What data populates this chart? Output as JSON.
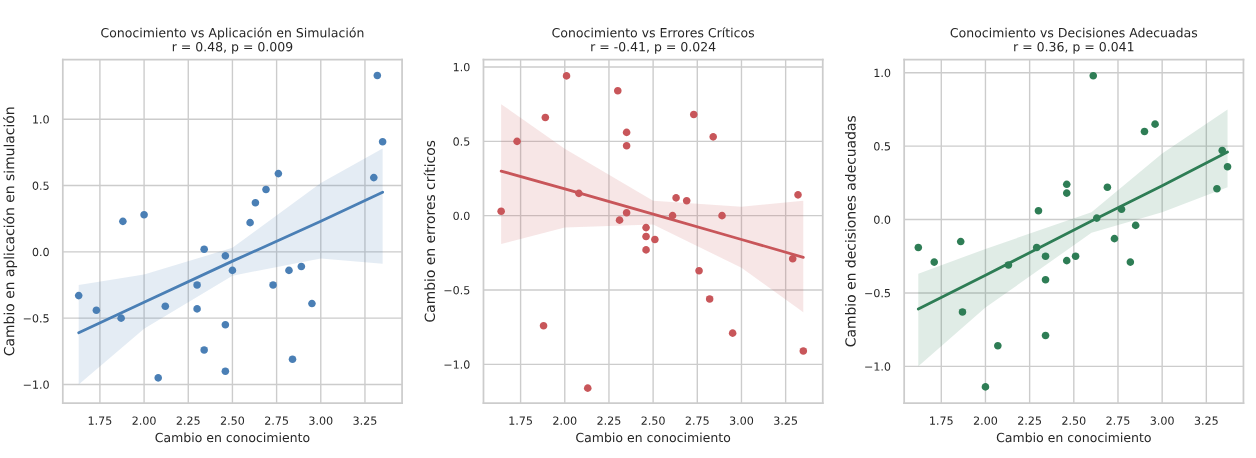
{
  "chart_data": [
    {
      "type": "scatter",
      "title": "Conocimiento vs Aplicación en Simulación",
      "subtitle": "r = 0.48, p = 0.009",
      "xlabel": "Cambio en conocimiento",
      "ylabel": "Cambio en aplicación en simulación",
      "grid": true,
      "marker": "circle",
      "xlim": [
        1.54,
        3.46
      ],
      "ylim": [
        -1.14,
        1.45
      ],
      "xticks": [
        1.75,
        {
          "value": 2.0,
          "label": "2.00"
        },
        2.25,
        {
          "value": 2.5,
          "label": "2.50"
        },
        2.75,
        {
          "value": 3.0,
          "label": "3.00"
        },
        3.25
      ],
      "yticks": [
        {
          "value": -1.0,
          "label": "−1.0"
        },
        {
          "value": -0.5,
          "label": "−0.5"
        },
        {
          "value": 0.0,
          "label": "0.0"
        },
        {
          "value": 0.5,
          "label": "0.5"
        },
        {
          "value": 1.0,
          "label": "1.0"
        }
      ],
      "series": [
        {
          "color": "#4a7fb5",
          "x": [
            1.63,
            1.73,
            1.88,
            1.87,
            2.0,
            2.08,
            2.12,
            2.3,
            2.3,
            2.34,
            2.34,
            2.46,
            2.46,
            2.46,
            2.5,
            2.6,
            2.63,
            2.69,
            2.73,
            2.76,
            2.82,
            2.84,
            2.89,
            2.95,
            3.3,
            3.32,
            3.35
          ],
          "values": [
            -0.33,
            -0.44,
            0.23,
            -0.5,
            0.28,
            -0.95,
            -0.41,
            -0.25,
            -0.43,
            0.02,
            -0.74,
            -0.03,
            -0.55,
            -0.9,
            -0.14,
            0.22,
            0.37,
            0.47,
            -0.25,
            0.59,
            -0.14,
            -0.81,
            -0.11,
            -0.39,
            0.56,
            1.33,
            0.83
          ]
        },
        {
          "type": "line",
          "color": "#4a7fb5",
          "marker": "none",
          "x": [
            1.63,
            2.0,
            2.5,
            3.0,
            3.35
          ],
          "values": [
            -0.61,
            -0.38,
            -0.07,
            0.23,
            0.45
          ],
          "lower": [
            -1.0,
            -0.58,
            -0.18,
            -0.05,
            -0.09
          ],
          "upper": [
            -0.25,
            -0.17,
            0.03,
            0.52,
            0.78
          ]
        }
      ]
    },
    {
      "type": "scatter",
      "title": "Conocimiento vs Errores Críticos",
      "subtitle": "r = -0.41, p = 0.024",
      "xlabel": "Cambio en conocimiento",
      "ylabel": "Cambio en errores críticos",
      "grid": true,
      "marker": "circle",
      "xlim": [
        1.54,
        3.46
      ],
      "ylim": [
        -1.26,
        1.05
      ],
      "xticks": [
        1.75,
        {
          "value": 2.0,
          "label": "2.00"
        },
        2.25,
        {
          "value": 2.5,
          "label": "2.50"
        },
        2.75,
        {
          "value": 3.0,
          "label": "3.00"
        },
        3.25
      ],
      "yticks": [
        {
          "value": -1.0,
          "label": "−1.0"
        },
        {
          "value": -0.5,
          "label": "−0.5"
        },
        {
          "value": 0.0,
          "label": "0.0"
        },
        {
          "value": 0.5,
          "label": "0.5"
        },
        {
          "value": 1.0,
          "label": "1.0"
        }
      ],
      "series": [
        {
          "color": "#c8565a",
          "x": [
            1.64,
            1.73,
            1.89,
            1.88,
            2.01,
            2.08,
            2.13,
            2.3,
            2.31,
            2.35,
            2.35,
            2.35,
            2.46,
            2.46,
            2.46,
            2.51,
            2.61,
            2.63,
            2.69,
            2.73,
            2.76,
            2.82,
            2.84,
            2.89,
            2.95,
            3.29,
            3.32,
            3.35
          ],
          "values": [
            0.03,
            0.5,
            0.66,
            -0.74,
            0.94,
            0.15,
            -1.16,
            0.84,
            -0.03,
            0.56,
            0.47,
            0.02,
            -0.08,
            -0.14,
            -0.23,
            -0.16,
            0.0,
            0.12,
            0.1,
            0.68,
            -0.37,
            -0.56,
            0.53,
            0.0,
            -0.79,
            -0.29,
            0.14,
            -0.91
          ]
        },
        {
          "type": "line",
          "color": "#c8565a",
          "marker": "none",
          "x": [
            1.64,
            2.0,
            2.5,
            3.0,
            3.35
          ],
          "values": [
            0.3,
            0.18,
            0.01,
            -0.16,
            -0.28
          ],
          "lower": [
            -0.19,
            -0.08,
            -0.06,
            -0.35,
            -0.65
          ],
          "upper": [
            0.75,
            0.45,
            0.1,
            0.06,
            0.1
          ]
        }
      ]
    },
    {
      "type": "scatter",
      "title": "Conocimiento vs Decisiones Adecuadas",
      "subtitle": "r = 0.36, p = 0.041",
      "xlabel": "Cambio en conocimiento",
      "ylabel": "Cambio en decisiones adecuadas",
      "grid": true,
      "marker": "circle",
      "xlim": [
        1.54,
        3.46
      ],
      "ylim": [
        -1.25,
        1.09
      ],
      "xticks": [
        1.75,
        {
          "value": 2.0,
          "label": "2.00"
        },
        2.25,
        {
          "value": 2.5,
          "label": "2.50"
        },
        2.75,
        {
          "value": 3.0,
          "label": "3.00"
        },
        3.25
      ],
      "yticks": [
        {
          "value": -1.0,
          "label": "−1.0"
        },
        {
          "value": -0.5,
          "label": "−0.5"
        },
        {
          "value": 0.0,
          "label": "0.0"
        },
        {
          "value": 0.5,
          "label": "0.5"
        },
        {
          "value": 1.0,
          "label": "1.0"
        }
      ],
      "series": [
        {
          "color": "#2e7d55",
          "x": [
            1.62,
            1.71,
            1.86,
            1.87,
            2.0,
            2.07,
            2.13,
            2.29,
            2.3,
            2.34,
            2.34,
            2.34,
            2.46,
            2.46,
            2.46,
            2.51,
            2.61,
            2.63,
            2.69,
            2.73,
            2.77,
            2.82,
            2.85,
            2.9,
            2.96,
            3.31,
            3.34,
            3.37
          ],
          "values": [
            -0.19,
            -0.29,
            -0.15,
            -0.63,
            -1.14,
            -0.86,
            -0.31,
            -0.19,
            0.06,
            -0.25,
            -0.41,
            -0.79,
            0.24,
            0.18,
            -0.28,
            -0.25,
            0.98,
            0.01,
            0.22,
            -0.13,
            0.07,
            -0.29,
            -0.04,
            0.6,
            0.65,
            0.21,
            0.47,
            0.36
          ]
        },
        {
          "type": "line",
          "color": "#2e7d55",
          "marker": "none",
          "x": [
            1.62,
            2.0,
            2.6,
            3.0,
            3.37
          ],
          "values": [
            -0.61,
            -0.38,
            -0.01,
            0.23,
            0.46
          ],
          "lower": [
            -1.0,
            -0.6,
            -0.09,
            0.05,
            0.22
          ],
          "upper": [
            -0.37,
            -0.2,
            0.05,
            0.45,
            0.75
          ]
        }
      ]
    }
  ]
}
